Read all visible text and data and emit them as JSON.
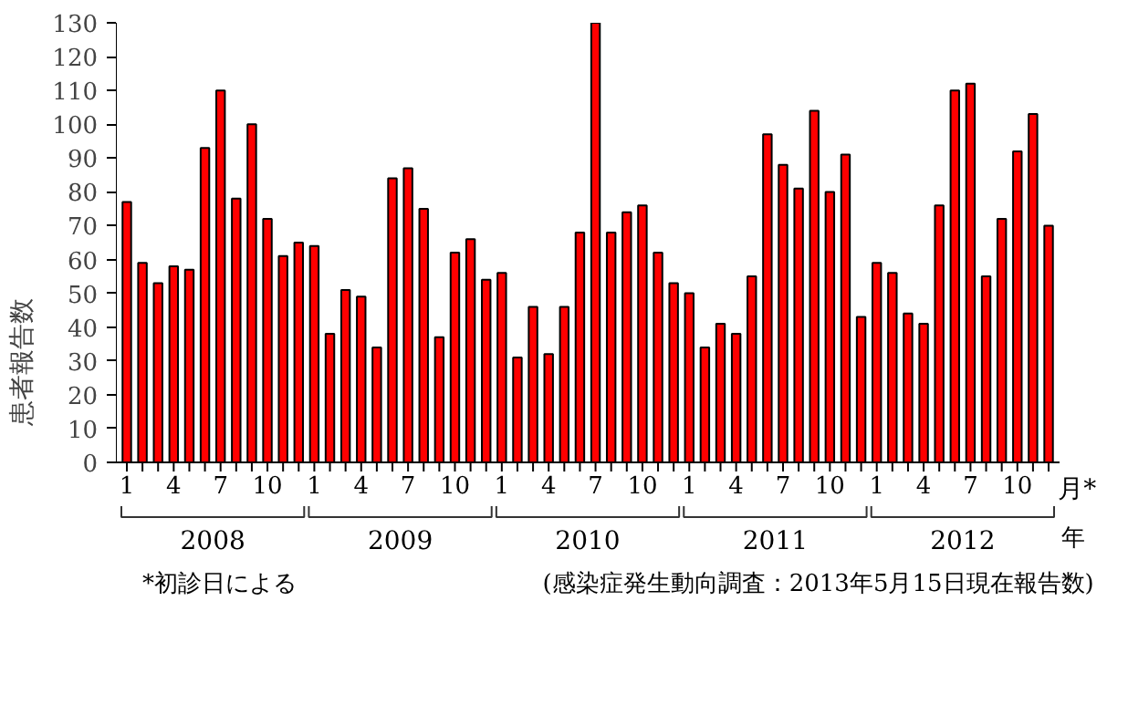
{
  "chart_data": {
    "type": "bar",
    "xlabel": "月*",
    "ylabel": "患者報告数",
    "categories": [
      "1",
      null,
      null,
      "4",
      null,
      null,
      "7",
      null,
      null,
      "10",
      null,
      null,
      "1",
      null,
      null,
      "4",
      null,
      null,
      "7",
      null,
      null,
      "10",
      null,
      null,
      "1",
      null,
      null,
      "4",
      null,
      null,
      "7",
      null,
      null,
      "10",
      null,
      null,
      "1",
      null,
      null,
      "4",
      null,
      null,
      "7",
      null,
      null,
      "10",
      null,
      null,
      "1",
      null,
      null,
      "4",
      null,
      null,
      "7",
      null,
      null,
      "10",
      null,
      null
    ],
    "values": [
      77,
      59,
      53,
      58,
      57,
      93,
      110,
      78,
      100,
      72,
      61,
      65,
      64,
      38,
      51,
      49,
      34,
      84,
      87,
      75,
      37,
      62,
      66,
      54,
      56,
      31,
      46,
      32,
      46,
      68,
      130,
      68,
      74,
      76,
      62,
      53,
      50,
      34,
      41,
      38,
      55,
      97,
      88,
      81,
      104,
      80,
      91,
      43,
      59,
      56,
      44,
      41,
      76,
      110,
      112,
      55,
      72,
      92,
      103,
      70
    ],
    "color": "#ff0000",
    "ylim": [
      0,
      130
    ],
    "yticks": [
      0,
      10,
      20,
      30,
      40,
      50,
      60,
      70,
      80,
      90,
      100,
      110,
      120,
      130
    ],
    "grid": false,
    "annotations": [
      "2008",
      "2009",
      "2010",
      "2011",
      "2012",
      "年",
      "*初診日による",
      "(感染症発生動向調査：2013年5月15日現在報告数)"
    ]
  }
}
